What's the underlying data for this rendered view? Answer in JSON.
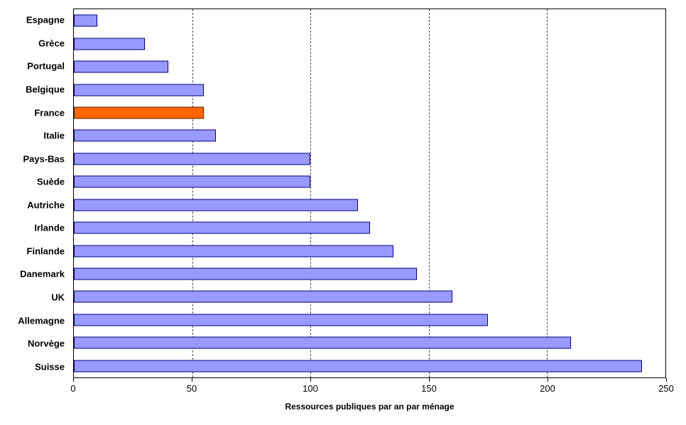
{
  "chart_data": {
    "type": "bar",
    "orientation": "horizontal",
    "title": "",
    "xlabel": "Ressources publiques par an par ménage",
    "ylabel": "",
    "xlim": [
      0,
      250
    ],
    "xticks": [
      0,
      50,
      100,
      150,
      200,
      250
    ],
    "gridlines": [
      50,
      100,
      150,
      200
    ],
    "legend_position": "none",
    "categories": [
      "Espagne",
      "Grèce",
      "Portugal",
      "Belgique",
      "France",
      "Italie",
      "Pays-Bas",
      "Suède",
      "Autriche",
      "Irlande",
      "Finlande",
      "Danemark",
      "UK",
      "Allemagne",
      "Norvège",
      "Suisse"
    ],
    "values": [
      10,
      30,
      40,
      55,
      55,
      60,
      100,
      100,
      120,
      125,
      135,
      145,
      160,
      175,
      210,
      240
    ],
    "highlight_category": "France",
    "colors": {
      "bar_fill": "#9999FF",
      "bar_border": "#000080",
      "highlight_fill": "#FF6600",
      "highlight_border": "#5a2200",
      "grid": "#4d4d4d",
      "axis": "#000000"
    }
  }
}
